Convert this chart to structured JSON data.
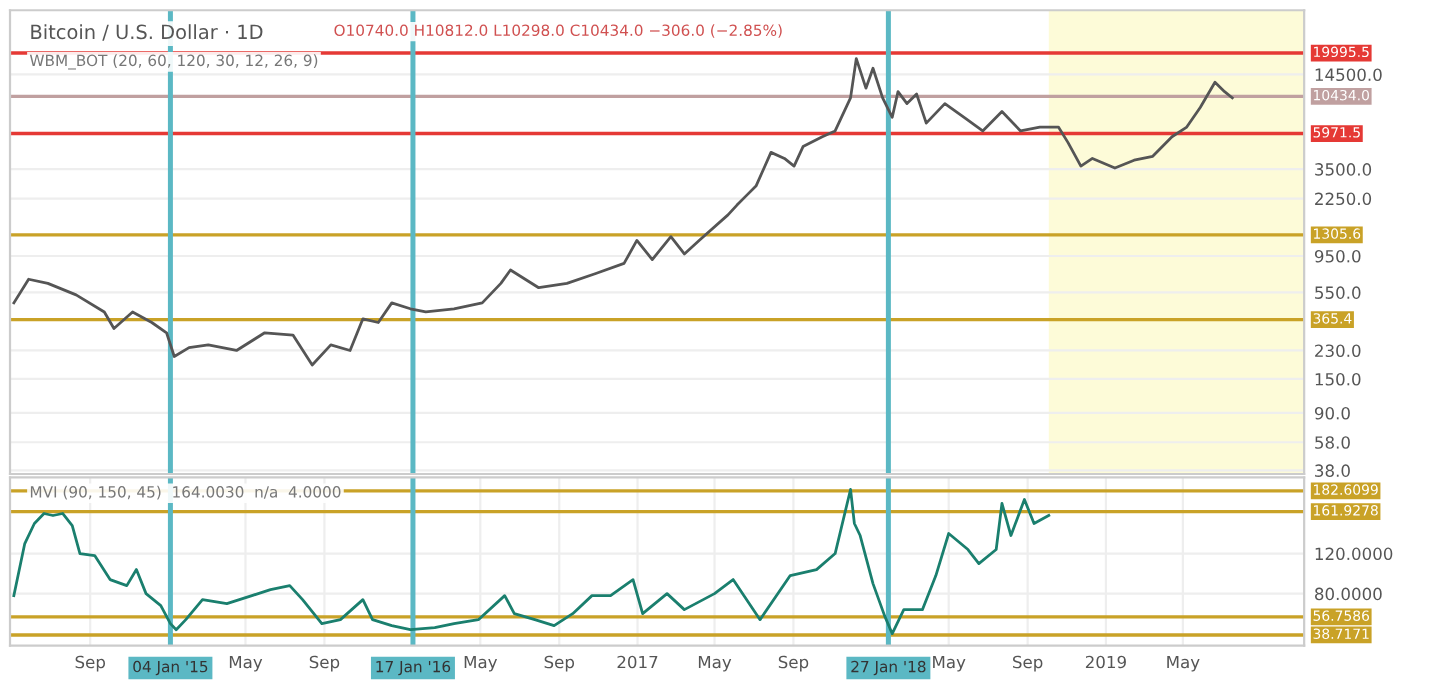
{
  "chart_data": [
    {
      "type": "line",
      "title": "Bitcoin / U.S. Dollar · 1D",
      "annotations": [
        "O10740.0 H10812.0 L10298.0 C10434.0 −306.0 (−2.85%)",
        "WBM_BOT (20, 60, 120, 30, 12, 26, 9)"
      ],
      "x": [
        "2014-05-05",
        "2014-05-28",
        "2014-06-27",
        "2014-08-10",
        "2014-09-23",
        "2014-10-08",
        "2014-11-06",
        "2014-12-06",
        "2014-12-29",
        "2015-01-10",
        "2015-02-02",
        "2015-03-04",
        "2015-04-17",
        "2015-05-31",
        "2015-07-14",
        "2015-08-13",
        "2015-09-11",
        "2015-10-11",
        "2015-10-31",
        "2015-11-24",
        "2015-12-15",
        "2016-01-13",
        "2016-02-06",
        "2016-03-21",
        "2016-05-04",
        "2016-06-02",
        "2016-06-17",
        "2016-07-31",
        "2016-09-13",
        "2016-10-28",
        "2016-12-11",
        "2016-12-31",
        "2017-01-24",
        "2017-02-22",
        "2017-03-15",
        "2017-04-07",
        "2017-05-22",
        "2017-06-05",
        "2017-06-20",
        "2017-07-05",
        "2017-07-28",
        "2017-08-18",
        "2017-09-02",
        "2017-09-16",
        "2017-10-16",
        "2017-11-05",
        "2017-11-29",
        "2017-12-08",
        "2017-12-23",
        "2018-01-03",
        "2018-01-18",
        "2018-02-02",
        "2018-02-11",
        "2018-02-25",
        "2018-03-12",
        "2018-03-27",
        "2018-04-25",
        "2018-05-25",
        "2018-06-23",
        "2018-07-23",
        "2018-08-21",
        "2018-09-20",
        "2018-10-19",
        "2018-11-03",
        "2018-11-23",
        "2018-12-11",
        "2019-01-15",
        "2019-02-14",
        "2019-03-15",
        "2019-04-14",
        "2019-05-07",
        "2019-05-28",
        "2019-06-20",
        "2019-07-05",
        "2019-07-17"
      ],
      "series": [
        {
          "color": "#555555",
          "values": [
            470,
            670,
            630,
            530,
            410,
            320,
            410,
            350,
            300,
            210,
            240,
            250,
            230,
            300,
            290,
            185,
            250,
            230,
            370,
            350,
            470,
            430,
            410,
            430,
            470,
            630,
            770,
            590,
            630,
            730,
            850,
            1200,
            900,
            1270,
            980,
            1200,
            1760,
            2040,
            2360,
            2730,
            4500,
            4110,
            3660,
            4910,
            5690,
            6210,
            10200,
            18400,
            11800,
            15900,
            10200,
            7620,
            11200,
            9360,
            10800,
            6980,
            9360,
            7620,
            6210,
            8320,
            6210,
            6580,
            6580,
            5210,
            3660,
            4110,
            3560,
            4000,
            4240,
            5690,
            6580,
            8830,
            12900,
            11200,
            10200
          ]
        }
      ],
      "log": true,
      "ylim": [
        36,
        38000
      ],
      "yticks": [
        {
          "value": 14500,
          "label": "14500.0"
        },
        {
          "value": 3500,
          "label": "3500.0"
        },
        {
          "value": 2250,
          "label": "2250.0"
        },
        {
          "value": 950,
          "label": "950.0"
        },
        {
          "value": 550,
          "label": "550.0"
        },
        {
          "value": 230,
          "label": "230.0"
        },
        {
          "value": 150,
          "label": "150.0"
        },
        {
          "value": 90,
          "label": "90.0"
        },
        {
          "value": 58,
          "label": "58.0"
        },
        {
          "value": 38,
          "label": "38.0"
        }
      ],
      "xlim": [
        "2014-04-29",
        "2019-11-06"
      ],
      "ref_lines": [
        {
          "axis": "y",
          "value": 19995.5,
          "label": "19995.5",
          "color": "#e53935"
        },
        {
          "axis": "y",
          "value": 10434.0,
          "label": "10434.0",
          "color": "#c0a0a0"
        },
        {
          "axis": "y",
          "value": 5971.5,
          "label": "5971.5",
          "color": "#e53935"
        },
        {
          "axis": "y",
          "value": 1305.6,
          "label": "1305.6",
          "color": "#c9a227"
        },
        {
          "axis": "y",
          "value": 365.4,
          "label": "365.4",
          "color": "#c9a227"
        },
        {
          "axis": "x",
          "value": "2015-01-04",
          "color": "#5bb8c4"
        },
        {
          "axis": "x",
          "value": "2016-01-17",
          "color": "#5bb8c4"
        },
        {
          "axis": "x",
          "value": "2018-01-27",
          "color": "#5bb8c4"
        }
      ],
      "bands": [
        {
          "axis": "x",
          "from": "2018-10-04",
          "to": "2019-11-06",
          "color": "#fdfbd8"
        }
      ],
      "grid": true,
      "tick_labels": "y"
    },
    {
      "type": "line",
      "annotations": [
        "MVI (90, 150, 45)  164.0030  n/a  4.0000"
      ],
      "x": [
        "2014-05-05",
        "2014-05-22",
        "2014-06-06",
        "2014-06-21",
        "2014-07-05",
        "2014-07-20",
        "2014-08-04",
        "2014-08-16",
        "2014-09-08",
        "2014-10-02",
        "2014-10-28",
        "2014-11-12",
        "2014-11-27",
        "2014-12-20",
        "2015-01-04",
        "2015-01-13",
        "2015-01-28",
        "2015-02-23",
        "2015-04-02",
        "2015-05-11",
        "2015-06-09",
        "2015-07-09",
        "2015-07-29",
        "2015-08-28",
        "2015-09-26",
        "2015-10-31",
        "2015-11-15",
        "2015-12-15",
        "2016-01-13",
        "2016-02-20",
        "2016-03-21",
        "2016-04-28",
        "2016-06-08",
        "2016-06-23",
        "2016-07-25",
        "2016-08-24",
        "2016-09-22",
        "2016-10-22",
        "2016-11-20",
        "2016-12-25",
        "2017-01-09",
        "2017-02-16",
        "2017-03-15",
        "2017-05-01",
        "2017-05-30",
        "2017-07-11",
        "2017-08-27",
        "2017-10-07",
        "2017-11-05",
        "2017-11-29",
        "2017-12-05",
        "2017-12-14",
        "2018-01-03",
        "2018-01-21",
        "2018-02-02",
        "2018-02-20",
        "2018-03-21",
        "2018-04-11",
        "2018-05-01",
        "2018-05-31",
        "2018-06-17",
        "2018-07-14",
        "2018-07-23",
        "2018-08-06",
        "2018-08-27",
        "2018-09-11",
        "2018-10-04"
      ],
      "series": [
        {
          "color": "#1a7f6e",
          "values": [
            78,
            130,
            150,
            160,
            158,
            160,
            148,
            120,
            118,
            94,
            88,
            104,
            80,
            68,
            50,
            44,
            54,
            74,
            70,
            78,
            84,
            88,
            74,
            50,
            54,
            74,
            54,
            48,
            44,
            46,
            50,
            54,
            78,
            60,
            54,
            48,
            60,
            78,
            78,
            94,
            60,
            80,
            64,
            80,
            94,
            54,
            98,
            104,
            120,
            184,
            150,
            138,
            90,
            58,
            40,
            64,
            64,
            98,
            140,
            124,
            110,
            124,
            170,
            138,
            174,
            150,
            158
          ]
        }
      ],
      "ylim": [
        28,
        196
      ],
      "yticks": [
        {
          "value": 120,
          "label": "120.0000"
        },
        {
          "value": 80,
          "label": "80.0000"
        }
      ],
      "xlim": [
        "2014-04-29",
        "2019-11-06"
      ],
      "xticks": [
        {
          "value": "2014-09-01",
          "label": "Sep"
        },
        {
          "value": "2015-05-01",
          "label": "May"
        },
        {
          "value": "2015-09-01",
          "label": "Sep"
        },
        {
          "value": "2016-05-01",
          "label": "May"
        },
        {
          "value": "2016-09-01",
          "label": "Sep"
        },
        {
          "value": "2017-01-01",
          "label": "2017"
        },
        {
          "value": "2017-05-01",
          "label": "May"
        },
        {
          "value": "2017-09-01",
          "label": "Sep"
        },
        {
          "value": "2018-05-01",
          "label": "May"
        },
        {
          "value": "2018-09-01",
          "label": "Sep"
        },
        {
          "value": "2019-01-01",
          "label": "2019"
        },
        {
          "value": "2019-05-01",
          "label": "May"
        }
      ],
      "ref_lines": [
        {
          "axis": "y",
          "value": 182.6099,
          "label": "182.6099",
          "color": "#c9a227"
        },
        {
          "axis": "y",
          "value": 161.9278,
          "label": "161.9278",
          "color": "#c9a227"
        },
        {
          "axis": "y",
          "value": 56.7586,
          "label": "56.7586",
          "color": "#c9a227"
        },
        {
          "axis": "y",
          "value": 38.7171,
          "label": "38.7171",
          "color": "#c9a227"
        },
        {
          "axis": "x",
          "value": "2015-01-04",
          "label": "04 Jan '15",
          "color": "#5bb8c4"
        },
        {
          "axis": "x",
          "value": "2016-01-17",
          "label": "17 Jan '16",
          "color": "#5bb8c4"
        },
        {
          "axis": "x",
          "value": "2018-01-27",
          "label": "27 Jan '18",
          "color": "#5bb8c4"
        }
      ],
      "grid": true
    }
  ]
}
